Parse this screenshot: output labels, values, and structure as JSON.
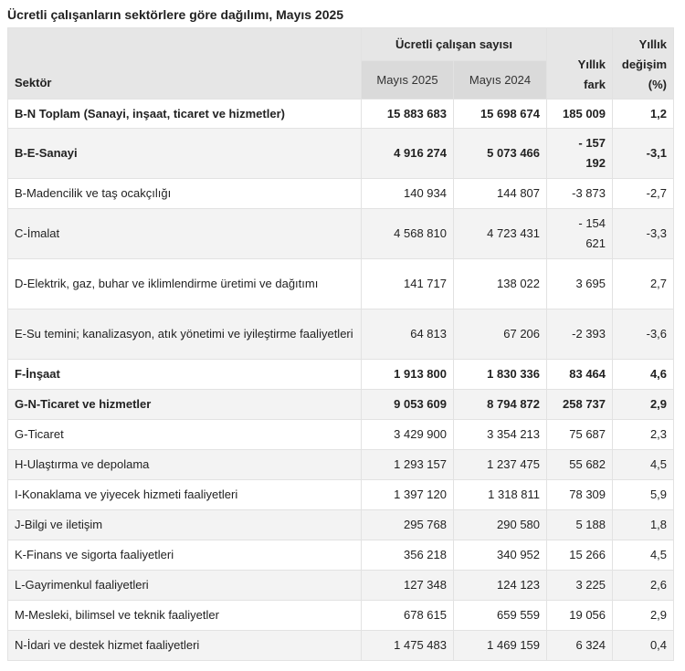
{
  "title": "Ücretli çalışanların sektörlere göre dağılımı, Mayıs 2025",
  "headers": {
    "sector": "Sektör",
    "group": "Ücretli çalışan sayısı",
    "may2025": "Mayıs 2025",
    "may2024": "Mayıs 2024",
    "annual_diff": "Yıllık fark",
    "annual_change": "Yıllık değişim (%)"
  },
  "rows": [
    {
      "sector": "B-N Toplam (Sanayi, inşaat, ticaret ve hizmetler)",
      "may2025": "15 883 683",
      "may2024": "15 698 674",
      "diff": "185 009",
      "change": "1,2",
      "bold": true
    },
    {
      "sector": "B-E-Sanayi",
      "may2025": "4 916 274",
      "may2024": "5 073 466",
      "diff": "- 157 192",
      "change": "-3,1",
      "bold": true
    },
    {
      "sector": "B-Madencilik ve taş ocakçılığı",
      "may2025": "140 934",
      "may2024": "144 807",
      "diff": "-3 873",
      "change": "-2,7"
    },
    {
      "sector": "C-İmalat",
      "may2025": "4 568 810",
      "may2024": "4 723 431",
      "diff": "- 154 621",
      "change": "-3,3"
    },
    {
      "sector": "D-Elektrik, gaz, buhar ve iklimlendirme üretimi ve dağıtımı",
      "may2025": "141 717",
      "may2024": "138 022",
      "diff": "3 695",
      "change": "2,7"
    },
    {
      "sector": "E-Su temini; kanalizasyon, atık yönetimi ve iyileştirme faaliyetleri",
      "may2025": "64 813",
      "may2024": "67 206",
      "diff": "-2 393",
      "change": "-3,6"
    },
    {
      "sector": "F-İnşaat",
      "may2025": "1 913 800",
      "may2024": "1 830 336",
      "diff": "83 464",
      "change": "4,6",
      "bold": true
    },
    {
      "sector": "G-N-Ticaret ve hizmetler",
      "may2025": "9 053 609",
      "may2024": "8 794 872",
      "diff": "258 737",
      "change": "2,9",
      "bold": true
    },
    {
      "sector": "G-Ticaret",
      "may2025": "3 429 900",
      "may2024": "3 354 213",
      "diff": "75 687",
      "change": "2,3"
    },
    {
      "sector": "H-Ulaştırma ve depolama",
      "may2025": "1 293 157",
      "may2024": "1 237 475",
      "diff": "55 682",
      "change": "4,5"
    },
    {
      "sector": "I-Konaklama ve yiyecek hizmeti faaliyetleri",
      "may2025": "1 397 120",
      "may2024": "1 318 811",
      "diff": "78 309",
      "change": "5,9"
    },
    {
      "sector": "J-Bilgi ve iletişim",
      "may2025": "295 768",
      "may2024": "290 580",
      "diff": "5 188",
      "change": "1,8"
    },
    {
      "sector": "K-Finans ve sigorta faaliyetleri",
      "may2025": "356 218",
      "may2024": "340 952",
      "diff": "15 266",
      "change": "4,5"
    },
    {
      "sector": "L-Gayrimenkul faaliyetleri",
      "may2025": "127 348",
      "may2024": "124 123",
      "diff": "3 225",
      "change": "2,6"
    },
    {
      "sector": "M-Mesleki, bilimsel ve teknik faaliyetler",
      "may2025": "678 615",
      "may2024": "659 559",
      "diff": "19 056",
      "change": "2,9"
    },
    {
      "sector": "N-İdari ve destek hizmet faaliyetleri",
      "may2025": "1 475 483",
      "may2024": "1 469 159",
      "diff": "6 324",
      "change": "0,4"
    }
  ]
}
